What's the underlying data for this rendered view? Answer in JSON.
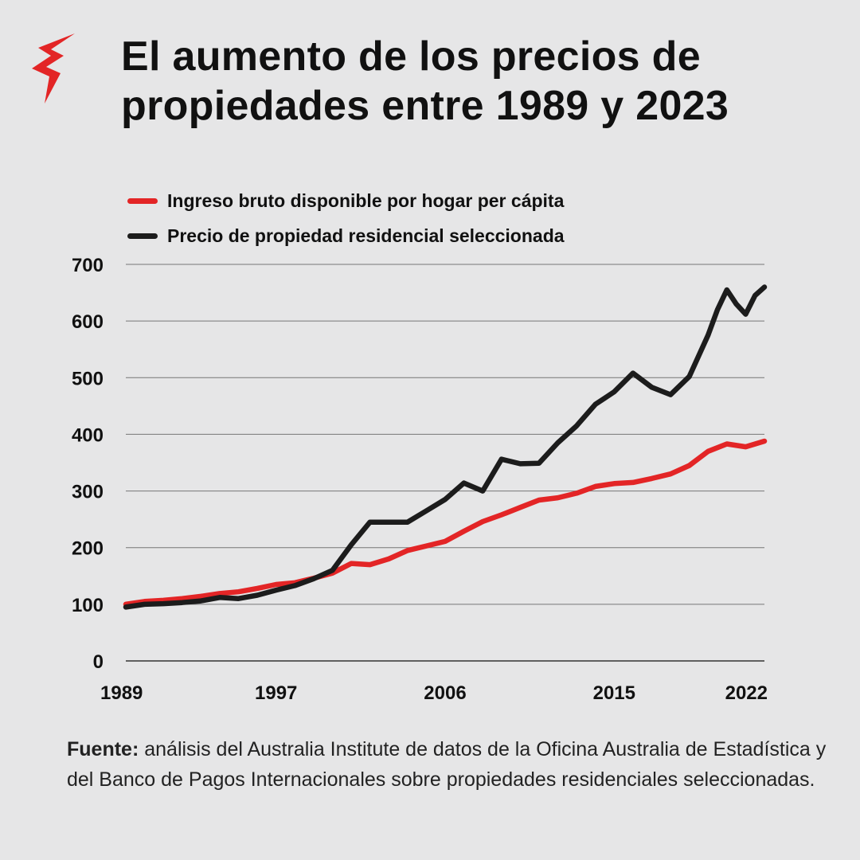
{
  "header": {
    "title_line1": "El aumento de los precios de",
    "title_line2": "propiedades entre 1989 y 2023",
    "logo_icon": "sbs-logo-icon",
    "logo_color": "#e32526"
  },
  "footer": {
    "source_label": "Fuente:",
    "source_text": " análisis del Australia Institute de datos de la Oficina Australia de Estadística y del Banco de Pagos Internacionales sobre propiedades residenciales seleccionadas."
  },
  "chart_data": {
    "type": "line",
    "xlim": [
      1989,
      2023
    ],
    "ylim": [
      0,
      700
    ],
    "x_ticks": [
      1989,
      1997,
      2006,
      2015,
      2022
    ],
    "y_ticks": [
      0,
      100,
      200,
      300,
      400,
      500,
      600,
      700
    ],
    "grid": "horizontal",
    "legend_position": "top-left",
    "series": [
      {
        "name": "Ingreso bruto disponible por hogar per cápita",
        "color": "#e32526",
        "x": [
          1989,
          1990,
          1991,
          1992,
          1993,
          1994,
          1995,
          1996,
          1997,
          1998,
          1999,
          2000,
          2001,
          2002,
          2003,
          2004,
          2005,
          2006,
          2007,
          2008,
          2009,
          2010,
          2011,
          2012,
          2013,
          2014,
          2015,
          2016,
          2017,
          2018,
          2019,
          2020,
          2021,
          2022,
          2023
        ],
        "y": [
          100,
          105,
          107,
          110,
          114,
          119,
          122,
          128,
          135,
          138,
          146,
          155,
          172,
          170,
          180,
          195,
          203,
          211,
          229,
          246,
          258,
          271,
          284,
          288,
          296,
          308,
          313,
          315,
          322,
          330,
          345,
          370,
          383,
          378,
          388
        ]
      },
      {
        "name": "Precio de propiedad residencial seleccionada",
        "color": "#1c1c1c",
        "x": [
          1989,
          1990,
          1991,
          1992,
          1993,
          1994,
          1995,
          1996,
          1997,
          1998,
          1999,
          2000,
          2001,
          2002,
          2003,
          2004,
          2005,
          2006,
          2007,
          2008,
          2009,
          2010,
          2011,
          2012,
          2013,
          2014,
          2015,
          2016,
          2017,
          2018,
          2019,
          2020,
          2020.5,
          2021,
          2021.5,
          2022,
          2022.5,
          2023
        ],
        "y": [
          95,
          100,
          101,
          103,
          106,
          112,
          110,
          116,
          125,
          133,
          145,
          160,
          205,
          245,
          245,
          245,
          265,
          285,
          314,
          300,
          356,
          348,
          349,
          385,
          415,
          453,
          475,
          508,
          483,
          470,
          502,
          575,
          620,
          655,
          630,
          612,
          645,
          660
        ]
      }
    ]
  }
}
